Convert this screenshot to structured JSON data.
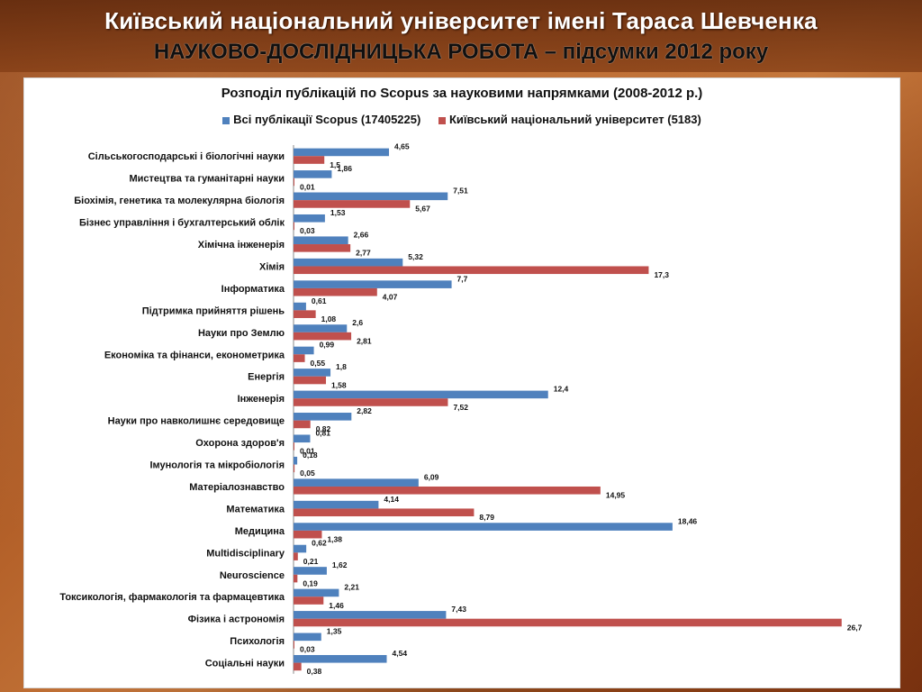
{
  "header": {
    "line1": "Київський національний університет  імені Тараса Шевченка",
    "line2": "НАУКОВО-ДОСЛІДНИЦЬКА РОБОТА – підсумки 2012 року"
  },
  "colors": {
    "series_all": "#4f81bd",
    "series_knu": "#c0504d"
  },
  "chart_data": {
    "type": "bar",
    "orientation": "horizontal",
    "title": "Розподіл публікацій по Scopus за науковими напрямками (2008-2012 р.)",
    "legend_position": "top",
    "grid": false,
    "xlim": [
      0,
      27
    ],
    "categories": [
      "Сільськогосподарські і біологічні науки",
      "Мистецтва та гуманітарні науки",
      "Біохімія,  генетика та молекулярна біологія",
      "Бізнес управління і бухгалтерський облік",
      "Хімічна інженерія",
      "Хімія",
      "Інформатика",
      "Підтримка прийняття рішень",
      "Науки про Землю",
      "Економіка та фінанси, економетрика",
      "Енергія",
      "Інженерія",
      "Науки про навколишнє середовище",
      "Охорона здоров'я",
      "Імунологія та мікробіологія",
      "Матеріалознавство",
      "Математика",
      "Медицина",
      "Multidisciplinary",
      "Neuroscience",
      "Токсикологія, фармакологія та фармацевтика",
      "Фізика і астрономія",
      "Психологія",
      "Соціальні науки"
    ],
    "series": [
      {
        "name": "Всі публікації Scopus (17405225)",
        "values": [
          4.65,
          1.86,
          7.51,
          1.53,
          2.66,
          5.32,
          7.7,
          0.61,
          2.6,
          0.99,
          1.8,
          12.4,
          2.82,
          0.81,
          0.18,
          6.09,
          4.14,
          18.46,
          0.62,
          1.62,
          2.21,
          7.43,
          1.35,
          4.54
        ],
        "labels": [
          "4,65",
          "1,86",
          "7,51",
          "1,53",
          "2,66",
          "5,32",
          "7,7",
          "0,61",
          "2,6",
          "0,99",
          "1,8",
          "12,4",
          "2,82",
          "0,81",
          "0,18",
          "6,09",
          "4,14",
          "18,46",
          "0,62",
          "1,62",
          "2,21",
          "7,43",
          "1,35",
          "4,54"
        ]
      },
      {
        "name": "Київський національний університет (5183)",
        "values": [
          1.5,
          0.01,
          5.67,
          0.03,
          2.77,
          17.3,
          4.07,
          1.08,
          2.81,
          0.55,
          1.58,
          7.52,
          0.82,
          0.01,
          0.05,
          14.95,
          8.79,
          1.38,
          0.21,
          0.19,
          1.46,
          26.7,
          0.03,
          0.38
        ],
        "labels": [
          "1,5",
          "0,01",
          "5,67",
          "0,03",
          "2,77",
          "17,3",
          "4,07",
          "1,08",
          "2,81",
          "0,55",
          "1,58",
          "7,52",
          "0,82",
          "0,01",
          "0,05",
          "14,95",
          "8,79",
          "1,38",
          "0,21",
          "0,19",
          "1,46",
          "26,7",
          "0,03",
          "0,38"
        ]
      }
    ]
  }
}
